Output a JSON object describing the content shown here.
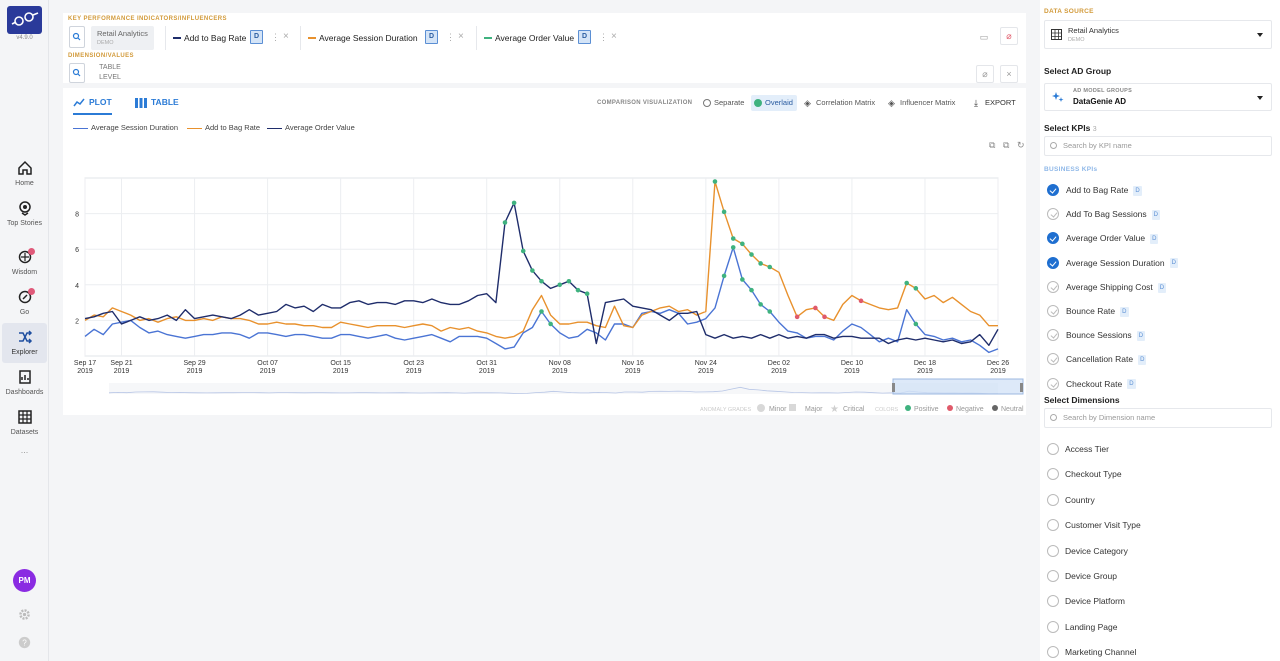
{
  "app": {
    "version": "v4.9.0"
  },
  "nav": {
    "items": [
      {
        "label": "Home",
        "icon": "home-icon"
      },
      {
        "label": "Top Stories",
        "icon": "top-stories-icon"
      },
      {
        "label": "Wisdom",
        "icon": "wisdom-icon"
      },
      {
        "label": "Go",
        "icon": "go-icon"
      },
      {
        "label": "Explorer",
        "icon": "explorer-icon",
        "active": true
      },
      {
        "label": "Dashboards",
        "icon": "dashboards-icon"
      },
      {
        "label": "Datasets",
        "icon": "datasets-icon"
      }
    ],
    "more": "...",
    "avatar": "PM"
  },
  "kpi_panel": {
    "kpi_section_label": "KEY PERFORMANCE INDICATORS/INFLUENCERS",
    "datasource_chip": {
      "title": "Retail Analytics",
      "subtitle": "DEMO"
    },
    "kpi_chips": [
      {
        "label": "Add to Bag Rate",
        "color": "#1f2d6b",
        "d": "D"
      },
      {
        "label": "Average Session Duration",
        "color": "#e8912d",
        "d": "D"
      },
      {
        "label": "Average Order Value",
        "color": "#3fb27f",
        "d": "D"
      }
    ],
    "dimension_section_label": "DIMENSION/VALUES",
    "table_level": "TABLE LEVEL"
  },
  "plot_panel": {
    "tab_plot": "PLOT",
    "tab_table": "TABLE",
    "comparison_label": "COMPARISON VISUALIZATION",
    "btn_separate": "Separate",
    "btn_overlaid": "Overlaid",
    "btn_correlation": "Correlation Matrix",
    "btn_influencer": "Influencer Matrix",
    "btn_export": "EXPORT",
    "footer": {
      "anomaly_grades_label": "ANOMALY GRADES",
      "minor": "Minor",
      "major": "Major",
      "critical": "Critical",
      "colors_label": "COLORS",
      "positive": "Positive",
      "negative": "Negative",
      "neutral": "Neutral"
    }
  },
  "chart_data": {
    "type": "line",
    "title": "",
    "xlabel": "",
    "ylabel": "",
    "ylim": [
      0,
      10
    ],
    "yticks": [
      2,
      4,
      6,
      8
    ],
    "grid": true,
    "legend": "top-left",
    "x_tick_labels": [
      [
        "Sep 17",
        "2019"
      ],
      [
        "Sep 21",
        "2019"
      ],
      [
        "Sep 29",
        "2019"
      ],
      [
        "Oct 07",
        "2019"
      ],
      [
        "Oct 15",
        "2019"
      ],
      [
        "Oct 23",
        "2019"
      ],
      [
        "Oct 31",
        "2019"
      ],
      [
        "Nov 08",
        "2019"
      ],
      [
        "Nov 16",
        "2019"
      ],
      [
        "Nov 24",
        "2019"
      ],
      [
        "Dec 02",
        "2019"
      ],
      [
        "Dec 10",
        "2019"
      ],
      [
        "Dec 18",
        "2019"
      ],
      [
        "Dec 26",
        "2019"
      ]
    ],
    "x_tick_days": [
      0,
      4,
      12,
      20,
      28,
      36,
      44,
      52,
      60,
      68,
      76,
      84,
      92,
      100
    ],
    "series": [
      {
        "name": "Average Session Duration",
        "color": "#4a74d4",
        "values": [
          1.1,
          1.5,
          1.2,
          1.8,
          1.9,
          2.0,
          1.6,
          1.3,
          1.4,
          1.2,
          1.1,
          1.0,
          1.1,
          1.2,
          1.2,
          1.3,
          1.3,
          1.2,
          1.0,
          1.3,
          1.3,
          1.2,
          1.1,
          1.2,
          1.2,
          1.1,
          1.0,
          1.0,
          1.2,
          1.2,
          1.1,
          1.0,
          1.1,
          1.2,
          1.0,
          0.9,
          1.0,
          1.1,
          1.2,
          1.0,
          0.8,
          1.1,
          1.1,
          1.1,
          1.0,
          0.7,
          0.4,
          0.5,
          1.3,
          1.6,
          2.5,
          1.8,
          1.3,
          1.0,
          1.1,
          1.5,
          1.3,
          0.9,
          1.8,
          1.8,
          1.6,
          2.4,
          2.5,
          2.4,
          2.6,
          2.4,
          1.8,
          1.9,
          2.1,
          2.7,
          4.5,
          6.1,
          4.3,
          3.7,
          2.9,
          2.5,
          1.9,
          1.4,
          1.3,
          1.0,
          1.1,
          1.1,
          0.9,
          1.4,
          1.8,
          1.6,
          1.2,
          0.8,
          1.0,
          0.8,
          2.6,
          1.8,
          1.2,
          1.1,
          0.9,
          1.0,
          0.8,
          0.9,
          0.6,
          0.2,
          0.4
        ],
        "anomalies": [
          [
            70,
            "positive"
          ],
          [
            71,
            "positive"
          ],
          [
            72,
            "positive"
          ],
          [
            73,
            "positive"
          ],
          [
            74,
            "positive"
          ],
          [
            75,
            "positive"
          ],
          [
            50,
            "positive"
          ],
          [
            51,
            "positive"
          ],
          [
            91,
            "positive"
          ]
        ]
      },
      {
        "name": "Add to Bag Rate",
        "color": "#e8912d",
        "values": [
          2.0,
          2.3,
          2.2,
          2.7,
          2.5,
          2.3,
          2.0,
          2.1,
          1.9,
          2.1,
          2.2,
          2.0,
          2.0,
          2.1,
          2.0,
          2.2,
          2.1,
          2.1,
          2.0,
          1.8,
          1.8,
          1.9,
          1.8,
          1.8,
          1.7,
          1.7,
          1.6,
          1.6,
          1.9,
          1.8,
          1.7,
          1.6,
          1.7,
          1.7,
          1.7,
          1.6,
          1.7,
          1.8,
          1.7,
          1.4,
          1.6,
          1.5,
          1.6,
          1.4,
          1.3,
          1.1,
          1.0,
          1.1,
          1.4,
          2.6,
          3.4,
          2.3,
          1.8,
          1.8,
          1.9,
          1.9,
          1.7,
          1.6,
          2.8,
          1.7,
          1.6,
          2.3,
          2.5,
          2.7,
          2.8,
          2.5,
          2.6,
          2.3,
          2.5,
          9.8,
          8.1,
          6.6,
          6.3,
          5.7,
          5.2,
          5.0,
          4.7,
          3.4,
          2.2,
          2.6,
          2.7,
          2.2,
          2.0,
          2.9,
          3.4,
          3.1,
          2.9,
          2.7,
          2.6,
          2.7,
          4.1,
          3.8,
          3.2,
          3.4,
          3.0,
          3.3,
          2.9,
          2.5,
          2.3,
          1.7,
          1.7
        ],
        "anomalies": [
          [
            69,
            "positive"
          ],
          [
            70,
            "positive"
          ],
          [
            71,
            "positive"
          ],
          [
            72,
            "positive"
          ],
          [
            73,
            "positive"
          ],
          [
            74,
            "positive"
          ],
          [
            75,
            "positive"
          ],
          [
            78,
            "negative"
          ],
          [
            80,
            "negative"
          ],
          [
            81,
            "negative"
          ],
          [
            90,
            "positive"
          ],
          [
            91,
            "positive"
          ],
          [
            85,
            "negative"
          ]
        ]
      },
      {
        "name": "Average Order Value",
        "color": "#1f2d6b",
        "values": [
          2.1,
          2.2,
          2.4,
          2.5,
          1.8,
          2.0,
          2.2,
          2.0,
          2.1,
          2.3,
          2.0,
          2.6,
          2.1,
          2.2,
          2.3,
          2.2,
          2.1,
          2.3,
          2.6,
          2.3,
          2.4,
          2.5,
          2.9,
          2.7,
          2.8,
          2.5,
          2.9,
          2.7,
          2.7,
          3.0,
          3.1,
          2.9,
          3.0,
          3.0,
          2.9,
          3.1,
          3.1,
          3.0,
          3.2,
          3.0,
          2.9,
          2.9,
          3.1,
          3.4,
          3.5,
          3.0,
          7.5,
          8.6,
          5.9,
          4.8,
          4.2,
          3.8,
          4.0,
          4.2,
          3.7,
          3.5,
          0.7,
          3.0,
          3.1,
          3.2,
          2.8,
          2.7,
          2.6,
          2.3,
          2.0,
          2.4,
          2.4,
          2.5,
          1.2,
          1.0,
          1.2,
          1.0,
          1.1,
          1.0,
          1.2,
          1.0,
          1.2,
          1.0,
          1.1,
          1.0,
          1.2,
          1.2,
          1.0,
          1.1,
          1.1,
          1.0,
          1.0,
          1.0,
          0.7,
          0.9,
          1.0,
          0.9,
          1.0,
          0.9,
          0.8,
          0.9,
          0.7,
          0.8,
          1.2,
          0.6,
          1.5
        ],
        "anomalies": [
          [
            46,
            "positive"
          ],
          [
            47,
            "positive"
          ],
          [
            48,
            "positive"
          ],
          [
            49,
            "positive"
          ],
          [
            50,
            "positive"
          ],
          [
            52,
            "positive"
          ],
          [
            53,
            "positive"
          ],
          [
            54,
            "positive"
          ],
          [
            55,
            "positive"
          ]
        ]
      }
    ]
  },
  "right_panel": {
    "data_source_label": "DATA SOURCE",
    "data_source": {
      "title": "Retail Analytics",
      "subtitle": "DEMO"
    },
    "ad_group_label": "Select AD Group",
    "ad_group": {
      "title": "AD MODEL GROUPS",
      "value": "DataGenie AD"
    },
    "kpis_label": "Select KPIs",
    "kpis_count": "3",
    "kpi_search_placeholder": "Search by KPI name",
    "business_kpis_label": "BUSINESS KPIs",
    "kpis": [
      {
        "label": "Add to Bag Rate",
        "checked": true,
        "d": "D"
      },
      {
        "label": "Add To Bag Sessions",
        "checked": false,
        "d": "D"
      },
      {
        "label": "Average Order Value",
        "checked": true,
        "d": "D"
      },
      {
        "label": "Average Session Duration",
        "checked": true,
        "d": "D"
      },
      {
        "label": "Average Shipping Cost",
        "checked": false,
        "d": "D"
      },
      {
        "label": "Bounce Rate",
        "checked": false,
        "d": "D"
      },
      {
        "label": "Bounce Sessions",
        "checked": false,
        "d": "D"
      },
      {
        "label": "Cancellation Rate",
        "checked": false,
        "d": "D"
      },
      {
        "label": "Checkout Rate",
        "checked": false,
        "d": "D"
      }
    ],
    "dimensions_label": "Select Dimensions",
    "dimension_search_placeholder": "Search by Dimension name",
    "dimensions": [
      "Access Tier",
      "Checkout Type",
      "Country",
      "Customer Visit Type",
      "Device Category",
      "Device Group",
      "Device Platform",
      "Landing Page",
      "Marketing Channel"
    ]
  },
  "colors": {
    "accent": "#2b7bd6",
    "positive": "#3fb27f",
    "negative": "#e05a6a",
    "neutral": "#666666",
    "brand": "#2a3a9a"
  }
}
